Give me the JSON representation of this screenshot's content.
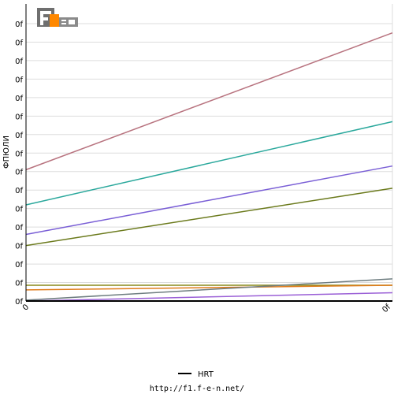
{
  "chart_data": {
    "type": "line",
    "ylabel": "ФПЮЛИ",
    "x_ticks": [
      "0",
      "0f"
    ],
    "y_ticks": [
      "0f",
      "0f",
      "0f",
      "0f",
      "0f",
      "0f",
      "0f",
      "0f",
      "0f",
      "0f",
      "0f",
      "0f",
      "0f",
      "0f",
      "0f",
      "0f"
    ],
    "xlim": [
      0,
      1
    ],
    "ylim": [
      0,
      15
    ],
    "grid": true,
    "legend_position": "bottom-center",
    "legend": [
      {
        "label": "HRT",
        "color": "#000000"
      }
    ],
    "series": [
      {
        "color": "#b8737f",
        "start": 7.1,
        "end": 14.5
      },
      {
        "color": "#2aa89c",
        "start": 5.2,
        "end": 9.7
      },
      {
        "color": "#7a5fd6",
        "start": 3.6,
        "end": 7.3
      },
      {
        "color": "#6b7a1c",
        "start": 3.0,
        "end": 6.1
      },
      {
        "color": "#8a8a1a",
        "start": 0.85,
        "end": 0.85
      },
      {
        "color": "#e07b1a",
        "start": 0.6,
        "end": 0.85
      },
      {
        "color": "#6e7d80",
        "start": 0.05,
        "end": 1.2
      },
      {
        "color": "#9a5fd6",
        "start": 0.0,
        "end": 0.45
      },
      {
        "color": "#000000",
        "start": 0.0,
        "end": 0.0
      }
    ]
  },
  "logo": {
    "text": "F1EN",
    "colors": [
      "#888888",
      "#ff8800",
      "#222222"
    ]
  },
  "footer": {
    "url": "http://f1.f-e-n.net/"
  }
}
